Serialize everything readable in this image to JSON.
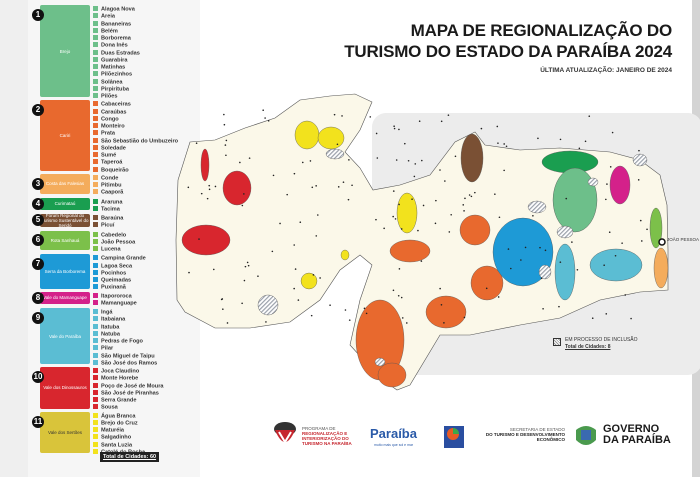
{
  "header": {
    "title_line1": "MAPA DE REGIONALIZAÇÃO DO",
    "title_line2": "TURISMO DO ESTADO DA PARAÍBA 2024",
    "updated": "ÚLTIMA ATUALIZAÇÃO: JANEIRO DE 2024"
  },
  "legend": {
    "regions": [
      {
        "number": "1",
        "name": "Brejo",
        "color": "#6dbf8a",
        "item_color": "#6dbf8a",
        "cities": [
          "Alagoa Nova",
          "Areia",
          "Bananeiras",
          "Belém",
          "Borborema",
          "Dona Inês",
          "Duas Estradas",
          "Guarabira",
          "Matinhas",
          "Pilõezinhos",
          "Solânea",
          "Pirpirituba",
          "Pilões"
        ]
      },
      {
        "number": "2",
        "name": "Cariri",
        "color": "#e8692e",
        "item_color": "#e8692e",
        "cities": [
          "Cabaceiras",
          "Caraúbas",
          "Congo",
          "Monteiro",
          "Prata",
          "São Sebastião do Umbuzeiro",
          "Soledade",
          "Sumé",
          "Taperoá",
          "Boqueirão"
        ]
      },
      {
        "number": "3",
        "name": "Costa das Falesias",
        "color": "#f4ac5c",
        "item_color": "#f4ac5c",
        "cities": [
          "Conde",
          "Pitimbu",
          "Caaporã"
        ]
      },
      {
        "number": "4",
        "name": "Curimataú",
        "color": "#1a9e50",
        "item_color": "#1a9e50",
        "cities": [
          "Araruna",
          "Tacima"
        ]
      },
      {
        "number": "5",
        "name": "Fórum Regional do Turismo Sustentável do Seridó",
        "color": "#7a5034",
        "item_color": "#7a5034",
        "cities": [
          "Baraúna",
          "Picuí"
        ]
      },
      {
        "number": "6",
        "name": "Rota Sanhauá",
        "color": "#7cc04a",
        "item_color": "#7cc04a",
        "cities": [
          "Cabedelo",
          "João Pessoa",
          "Lucena"
        ]
      },
      {
        "number": "7",
        "name": "Serra da Borborema",
        "color": "#1e9ad6",
        "item_color": "#1e9ad6",
        "cities": [
          "Campina Grande",
          "Lagoa Seca",
          "Pocinhos",
          "Queimadas",
          "Puxinanã"
        ]
      },
      {
        "number": "8",
        "name": "Vale do Mamanguape",
        "color": "#d4218a",
        "item_color": "#d4218a",
        "cities": [
          "Itapororoca",
          "Mamanguape"
        ]
      },
      {
        "number": "9",
        "name": "Vale do Paraíba",
        "color": "#5bbdd3",
        "item_color": "#5bbdd3",
        "cities": [
          "Ingá",
          "Itabaiana",
          "Itatuba",
          "Natuba",
          "Pedras de Fogo",
          "Pilar",
          "São Miguel de Taipu",
          "São José dos Ramos"
        ]
      },
      {
        "number": "10",
        "name": "Vale dos Dinossauros",
        "color": "#d8262e",
        "item_color": "#d8262e",
        "cities": [
          "Joca Claudino",
          "Monte Horebe",
          "Poço de José de Moura",
          "São José de Piranhas",
          "Serra Grande",
          "Sousa"
        ]
      },
      {
        "number": "11",
        "name": "Vale dos Sertões",
        "color": "#d9c43a",
        "item_color": "#f2e21d",
        "cities": [
          "Água Branca",
          "Brejo do Cruz",
          "Maturéia",
          "Salgadinho",
          "Santa Luzia",
          "Catolé do Rocha"
        ]
      }
    ],
    "total": "Total de Cidades: 60"
  },
  "map": {
    "capital_label": "JOÃO PESSOA",
    "inclusion_label": "EM PROCESSO DE INCLUSÃO",
    "inclusion_total": "Total de Cidades: 8"
  },
  "footer": {
    "program": [
      "PROGRAMA DE",
      "REGIONALIZAÇÃO E",
      "INTERIORIZAÇÃO DO",
      "TURISMO NA PARAÍBA"
    ],
    "brand": "Paraíba",
    "brand_slogan": "muito mais que sol e mar",
    "secretaria": [
      "SECRETARIA DE ESTADO",
      "DO TURISMO E DESENVOLVIMENTO",
      "ECONÔMICO"
    ],
    "governo": [
      "GOVERNO",
      "DA PARAÍBA"
    ]
  }
}
